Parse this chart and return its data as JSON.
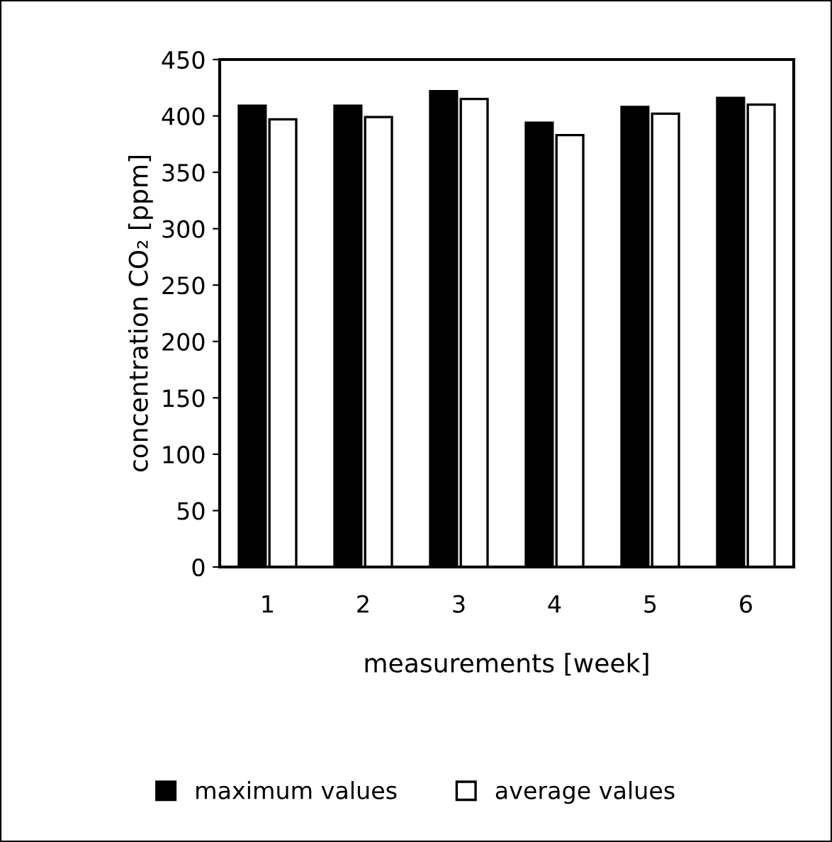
{
  "chart_data": {
    "type": "bar",
    "xlabel": "measurements [week]",
    "ylabel": "concentration CO₂ [ppm]",
    "categories": [
      "1",
      "2",
      "3",
      "4",
      "5",
      "6"
    ],
    "series": [
      {
        "name": "maximum values",
        "color": "#000000",
        "values": [
          409,
          409,
          422,
          394,
          408,
          416
        ]
      },
      {
        "name": "average values",
        "color": "#ffffff",
        "values": [
          397,
          399,
          415,
          383,
          402,
          410
        ]
      }
    ],
    "ylim": [
      0,
      450
    ],
    "yticks": [
      0,
      50,
      100,
      150,
      200,
      250,
      300,
      350,
      400,
      450
    ],
    "grid": false,
    "legend": "bottom"
  }
}
